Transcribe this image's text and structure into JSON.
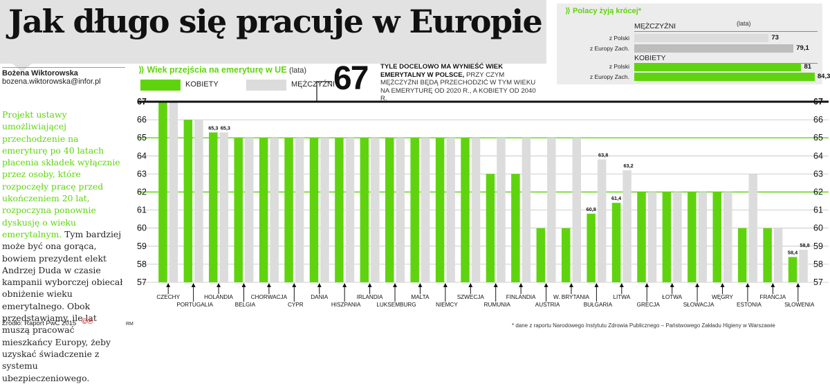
{
  "title": "Jak długo się pracuje w Europie",
  "author": {
    "name": "Bożena Wiktorowska",
    "email": "bozena.wiktorowska@infor.pl"
  },
  "lead": {
    "green_text": "Projekt ustawy umożliwiającej przechodzenie na emeryturę po 40 latach płacenia składek wyłącznie przez osoby, które rozpoczęły pracę przed ukończeniem 20 lat, rozpoczyna ponownie dyskusję o wieku emerytalnym.",
    "body_text": "Tym bardziej może być ona gorąca, bowiem prezydent elekt Andrzej Duda w czasie kampanii wyborczej obiecał obniżenie wieku emerytalnego. Obok przedstawiamy, ile lat muszą pracować mieszkańcy Europy, żeby uzyskać świadczenie z systemu ubezpieczeniowego."
  },
  "source": "Źródło: Raport PwC 2015",
  "cc": "©℗",
  "rm": "RM",
  "footnote": "* dane z raportu Narodowego Instytutu Zdrowia Publicznego – Państwowego Zakładu Higieny w Warszawie",
  "big_number": "67",
  "big_note_bold": "TYLE DOCELOWO MA WYNIEŚĆ WIEK EMERYTALNY W POLSCE,",
  "big_note_rest": "PRZY CZYM MĘŻCZYŹNI BĘDĄ PRZECHODZIĆ W TYM WIEKU NA EMERYTURĘ OD 2020 R., A KOBIETY OD 2040 R.",
  "colors": {
    "women": "#5fd40e",
    "men": "#dcdcdc",
    "men_inset": "#bdbdbd",
    "accent": "#5fd40e"
  },
  "inset": {
    "title": "Polacy żyją krócej*",
    "unit": "(lata)",
    "groups": [
      {
        "name": "MĘŻCZYŹNI",
        "rows": [
          {
            "label": "z Polski",
            "value": "73"
          },
          {
            "label": "z Europy Zach.",
            "value": "79,1"
          }
        ]
      },
      {
        "name": "KOBIETY",
        "rows": [
          {
            "label": "z Polski",
            "value": "81"
          },
          {
            "label": "z Europy Zach.",
            "value": "84,3"
          }
        ]
      }
    ],
    "values_numeric": {
      "men": [
        73,
        79.1
      ],
      "women": [
        81,
        84.3
      ]
    }
  },
  "chart_data": {
    "type": "bar",
    "title": "Wiek przejścia na emeryturę w UE",
    "unit": "(lata)",
    "ylim": [
      57,
      67
    ],
    "yticks": [
      57,
      58,
      59,
      60,
      61,
      62,
      63,
      64,
      65,
      66,
      67
    ],
    "categories": [
      "CZECHY",
      "PORTUGALIA",
      "HOLANDIA",
      "BELGIA",
      "CHORWACJA",
      "CYPR",
      "DANIA",
      "HISZPANIA",
      "IRLANDIA",
      "LUKSEMBURG",
      "MALTA",
      "NIEMCY",
      "SZWECJA",
      "RUMUNIA",
      "FINLANDIA",
      "AUSTRIA",
      "W. BRYTANIA",
      "BUŁGARIA",
      "LITWA",
      "GRECJA",
      "ŁOTWA",
      "SŁOWACJA",
      "WĘGRY",
      "ESTONIA",
      "FRANCJA",
      "SŁOWENIA"
    ],
    "series": [
      {
        "name": "KOBIETY",
        "values": [
          67,
          66,
          65.3,
          65,
          65,
          65,
          65,
          65,
          65,
          65,
          65,
          65,
          65,
          63,
          63,
          60,
          60,
          60.8,
          61.4,
          62,
          62,
          62,
          62,
          60,
          60,
          58.4
        ]
      },
      {
        "name": "MĘŻCZYŹNI",
        "values": [
          67,
          66,
          65.3,
          65,
          65,
          65,
          65,
          65,
          65,
          65,
          65,
          65,
          65,
          65,
          65,
          65,
          65,
          63.8,
          63.2,
          62,
          62,
          62,
          62,
          63,
          60,
          58.8
        ]
      }
    ],
    "data_labels": [
      {
        "category": "HOLANDIA",
        "women": "65,3",
        "men": "65,3"
      },
      {
        "category": "BUŁGARIA",
        "women": "60,8",
        "men": "63,8"
      },
      {
        "category": "LITWA",
        "women": "61,4",
        "men": "63,2"
      },
      {
        "category": "SŁOWENIA",
        "women": "58,4",
        "men": "58,8"
      }
    ],
    "highlight_line": 67,
    "grid": true
  }
}
